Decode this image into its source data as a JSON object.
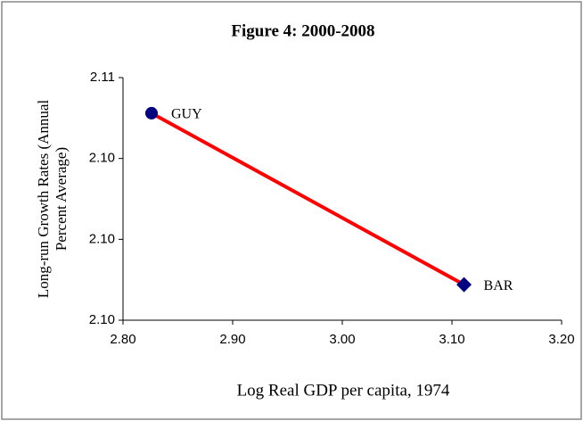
{
  "chart_data": {
    "type": "line",
    "title": "Figure 4: 2000-2008",
    "xlabel": "Log Real GDP per capita, 1974",
    "ylabel": [
      "Long-run Growth Rates (Annual",
      "Percent Average)"
    ],
    "x": [
      2.826,
      3.111
    ],
    "series": [
      {
        "name": "GUY-BAR",
        "color": "#ff0000",
        "values": [
          2.1044,
          2.0991
        ]
      }
    ],
    "point_labels": [
      "GUY",
      "BAR"
    ],
    "marker_color": "#000080",
    "xlim": [
      2.8,
      3.2
    ],
    "xticks": [
      {
        "value": 2.8,
        "label": "2.80"
      },
      {
        "value": 2.9,
        "label": "2.90"
      },
      {
        "value": 3.0,
        "label": "3.00"
      },
      {
        "value": 3.1,
        "label": "3.10"
      },
      {
        "value": 3.2,
        "label": "3.20"
      }
    ],
    "ylim": [
      2.098,
      2.1055
    ],
    "yticks": [
      {
        "value": 2.098,
        "label": "2.10"
      },
      {
        "value": 2.1005,
        "label": "2.10"
      },
      {
        "value": 2.103,
        "label": "2.10"
      },
      {
        "value": 2.1055,
        "label": "2.11"
      }
    ]
  }
}
